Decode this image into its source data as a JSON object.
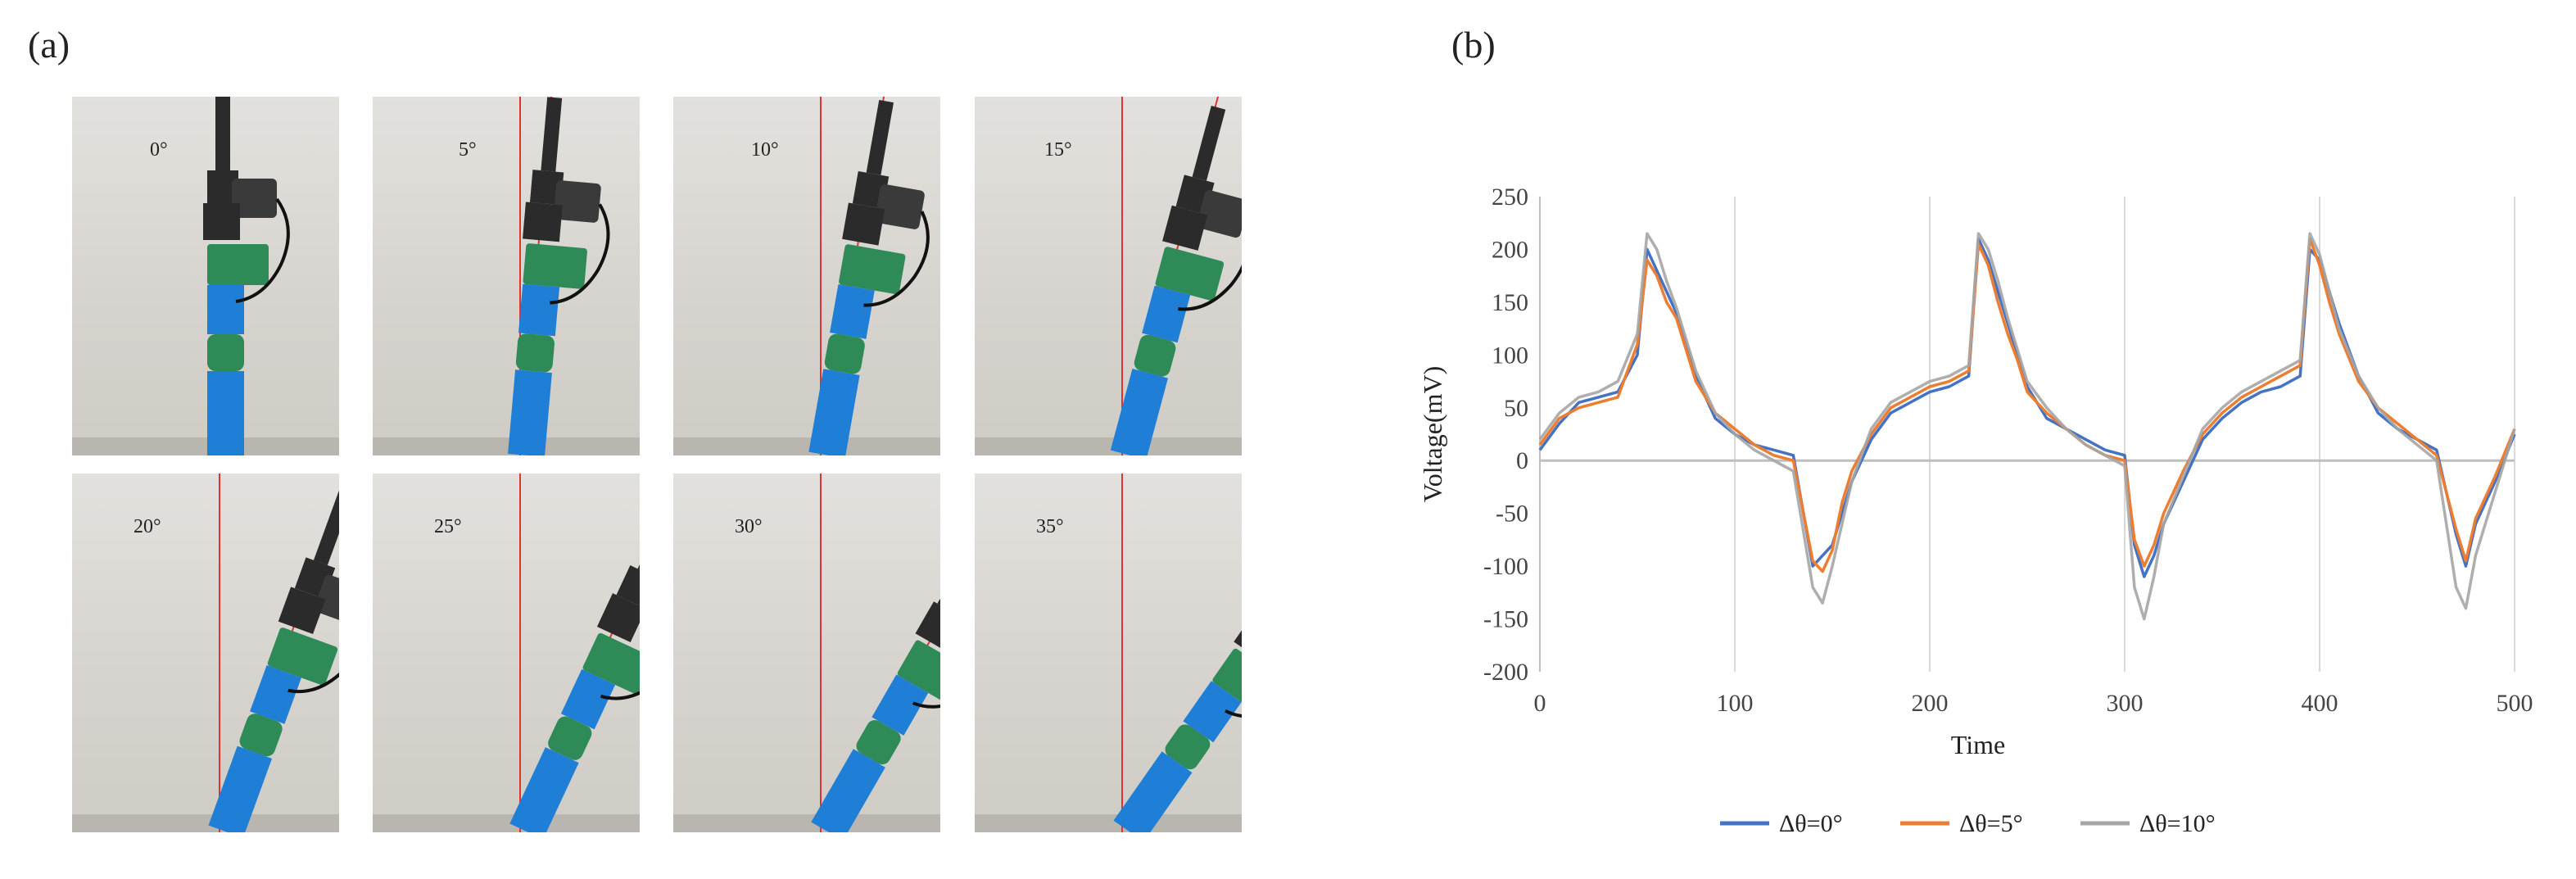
{
  "panel_a": {
    "label": "(a)",
    "photos": [
      {
        "angle_label": "0°",
        "angle": 0
      },
      {
        "angle_label": "5°",
        "angle": 5
      },
      {
        "angle_label": "10°",
        "angle": 10
      },
      {
        "angle_label": "15°",
        "angle": 15
      },
      {
        "angle_label": "20°",
        "angle": 20
      },
      {
        "angle_label": "25°",
        "angle": 25
      },
      {
        "angle_label": "30°",
        "angle": 30
      },
      {
        "angle_label": "35°",
        "angle": 35
      }
    ]
  },
  "panel_b": {
    "label": "(b)"
  },
  "colors": {
    "series_blue": "#4472c4",
    "series_orange": "#ed7d31",
    "series_gray": "#a5a5a5",
    "robot_blue": "#1f7fd6",
    "robot_green": "#2e8b57",
    "reference_line": "#e0322f"
  },
  "chart_data": {
    "type": "line",
    "xlabel": "Time",
    "ylabel": "Voltage(mV)",
    "xlim": [
      0,
      500
    ],
    "ylim": [
      -200,
      250
    ],
    "x_ticks": [
      "0",
      "100",
      "200",
      "300",
      "400",
      "500"
    ],
    "y_ticks": [
      "250",
      "200",
      "150",
      "100",
      "50",
      "0",
      "-50",
      "-100",
      "-150",
      "-200"
    ],
    "grid": "vertical",
    "legend_position": "bottom",
    "series": [
      {
        "name": "Δθ=0°",
        "x": [
          0,
          10,
          20,
          30,
          40,
          50,
          55,
          60,
          65,
          70,
          75,
          80,
          90,
          100,
          110,
          120,
          130,
          140,
          145,
          150,
          155,
          160,
          170,
          180,
          190,
          200,
          210,
          220,
          225,
          230,
          235,
          240,
          245,
          250,
          260,
          270,
          280,
          290,
          300,
          305,
          310,
          315,
          320,
          330,
          340,
          350,
          360,
          370,
          380,
          390,
          395,
          400,
          405,
          410,
          420,
          430,
          440,
          450,
          460,
          470,
          475,
          480,
          490,
          500
        ],
        "y": [
          10,
          35,
          55,
          60,
          65,
          100,
          200,
          180,
          160,
          140,
          110,
          80,
          40,
          25,
          15,
          10,
          5,
          -100,
          -90,
          -80,
          -50,
          -20,
          20,
          45,
          55,
          65,
          70,
          80,
          210,
          190,
          160,
          130,
          100,
          70,
          40,
          30,
          20,
          10,
          5,
          -80,
          -110,
          -90,
          -60,
          -20,
          20,
          40,
          55,
          65,
          70,
          80,
          200,
          190,
          160,
          130,
          80,
          45,
          30,
          20,
          10,
          -70,
          -100,
          -60,
          -20,
          25
        ]
      },
      {
        "name": "Δθ=5°",
        "x": [
          0,
          10,
          20,
          30,
          40,
          50,
          55,
          60,
          65,
          70,
          75,
          80,
          90,
          100,
          110,
          120,
          130,
          140,
          145,
          150,
          155,
          160,
          170,
          180,
          190,
          200,
          210,
          220,
          225,
          230,
          235,
          240,
          245,
          250,
          260,
          270,
          280,
          290,
          300,
          305,
          310,
          315,
          320,
          330,
          340,
          350,
          360,
          370,
          380,
          390,
          395,
          400,
          405,
          410,
          420,
          430,
          440,
          450,
          460,
          470,
          475,
          480,
          490,
          500
        ],
        "y": [
          15,
          40,
          50,
          55,
          60,
          110,
          190,
          175,
          150,
          135,
          105,
          75,
          45,
          30,
          15,
          5,
          0,
          -95,
          -105,
          -85,
          -40,
          -10,
          25,
          50,
          60,
          70,
          75,
          85,
          205,
          185,
          150,
          120,
          95,
          65,
          45,
          30,
          15,
          5,
          0,
          -75,
          -100,
          -80,
          -50,
          -10,
          25,
          45,
          60,
          70,
          80,
          90,
          210,
          185,
          150,
          120,
          75,
          50,
          35,
          20,
          5,
          -65,
          -95,
          -55,
          -15,
          30
        ]
      },
      {
        "name": "Δθ=10°",
        "x": [
          0,
          10,
          20,
          30,
          40,
          50,
          55,
          60,
          65,
          70,
          75,
          80,
          90,
          100,
          110,
          120,
          130,
          140,
          145,
          150,
          155,
          160,
          170,
          180,
          190,
          200,
          210,
          220,
          225,
          230,
          235,
          240,
          245,
          250,
          260,
          270,
          280,
          290,
          300,
          305,
          310,
          315,
          320,
          330,
          340,
          350,
          360,
          370,
          380,
          390,
          395,
          400,
          405,
          410,
          420,
          430,
          440,
          450,
          460,
          470,
          475,
          480,
          490,
          500
        ],
        "y": [
          20,
          45,
          60,
          65,
          75,
          120,
          215,
          200,
          170,
          145,
          115,
          85,
          45,
          25,
          10,
          0,
          -10,
          -120,
          -135,
          -100,
          -60,
          -20,
          30,
          55,
          65,
          75,
          80,
          90,
          215,
          200,
          170,
          135,
          105,
          75,
          50,
          30,
          15,
          5,
          -5,
          -120,
          -150,
          -110,
          -60,
          -15,
          30,
          50,
          65,
          75,
          85,
          95,
          215,
          195,
          160,
          125,
          80,
          50,
          30,
          15,
          0,
          -120,
          -140,
          -90,
          -30,
          30
        ]
      }
    ]
  }
}
